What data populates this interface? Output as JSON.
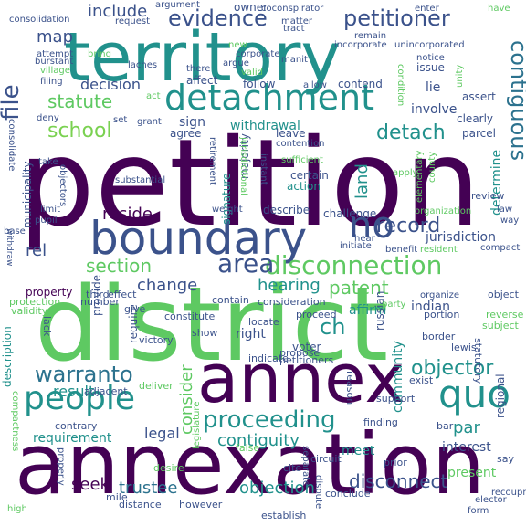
{
  "words": [
    {
      "text": "petition",
      "color": "#440154"
    },
    {
      "text": "district",
      "color": "#5ec962"
    },
    {
      "text": "annexation",
      "color": "#440154"
    },
    {
      "text": "territory",
      "color": "#21918c"
    },
    {
      "text": "annex",
      "color": "#440154"
    },
    {
      "text": "boundary",
      "color": "#3b528b"
    },
    {
      "text": "detachment",
      "color": "#21918c"
    },
    {
      "text": "people",
      "color": "#21918c"
    },
    {
      "text": "quo",
      "color": "#21918c"
    },
    {
      "text": "disconnection",
      "color": "#5ec962"
    },
    {
      "text": "proceeding",
      "color": "#21918c"
    },
    {
      "text": "warranto",
      "color": "#2c728e"
    },
    {
      "text": "area",
      "color": "#3b528b"
    },
    {
      "text": "no",
      "color": "#3b528b"
    },
    {
      "text": "evidence",
      "color": "#3b528b"
    },
    {
      "text": "petitioner",
      "color": "#3b528b"
    },
    {
      "text": "contiguous",
      "color": "#2c728e"
    },
    {
      "text": "file",
      "color": "#3b528b"
    },
    {
      "text": "map",
      "color": "#3b528b"
    },
    {
      "text": "include",
      "color": "#3b528b"
    },
    {
      "text": "statute",
      "color": "#5ec962"
    },
    {
      "text": "school",
      "color": "#7ad151"
    },
    {
      "text": "detach",
      "color": "#21918c"
    },
    {
      "text": "rel",
      "color": "#3b528b"
    },
    {
      "text": "record",
      "color": "#3b528b"
    },
    {
      "text": "section",
      "color": "#5ec962"
    },
    {
      "text": "patent",
      "color": "#5ec962"
    },
    {
      "text": "objector",
      "color": "#21918c"
    },
    {
      "text": "ch",
      "color": "#21918c"
    },
    {
      "text": "consider",
      "color": "#5ec962"
    },
    {
      "text": "contiguity",
      "color": "#21918c"
    },
    {
      "text": "change",
      "color": "#3b528b"
    },
    {
      "text": "hearing",
      "color": "#21918c"
    },
    {
      "text": "disconnect",
      "color": "#3b528b"
    },
    {
      "text": "objection",
      "color": "#21918c"
    },
    {
      "text": "trustee",
      "color": "#2c728e"
    },
    {
      "text": "seek",
      "color": "#440154"
    },
    {
      "text": "land",
      "color": "#21918c"
    },
    {
      "text": "reside",
      "color": "#440154"
    },
    {
      "text": "jurisdiction",
      "color": "#3b528b"
    },
    {
      "text": "requirement",
      "color": "#21918c"
    },
    {
      "text": "legal",
      "color": "#3b528b"
    },
    {
      "text": "result",
      "color": "#21918c"
    },
    {
      "text": "par",
      "color": "#21918c"
    },
    {
      "text": "interest",
      "color": "#3b528b"
    },
    {
      "text": "community",
      "color": "#21918c"
    },
    {
      "text": "affirm",
      "color": "#21918c"
    },
    {
      "text": "right",
      "color": "#3b528b"
    },
    {
      "text": "voter",
      "color": "#3b528b"
    },
    {
      "text": "present",
      "color": "#5ec962"
    },
    {
      "text": "decision",
      "color": "#3b528b"
    },
    {
      "text": "involve",
      "color": "#3b528b"
    },
    {
      "text": "withdrawal",
      "color": "#21918c"
    },
    {
      "text": "municipality",
      "color": "#3b528b"
    },
    {
      "text": "sign",
      "color": "#3b528b"
    },
    {
      "text": "lie",
      "color": "#3b528b"
    },
    {
      "text": "owner",
      "color": "#3b528b"
    },
    {
      "text": "meet",
      "color": "#21918c"
    },
    {
      "text": "determine",
      "color": "#21918c"
    },
    {
      "text": "provide",
      "color": "#3b528b"
    },
    {
      "text": "indian",
      "color": "#3b528b"
    },
    {
      "text": "property",
      "color": "#440154"
    },
    {
      "text": "action",
      "color": "#21918c"
    },
    {
      "text": "certain",
      "color": "#3b528b"
    },
    {
      "text": "signature",
      "color": "#21918c"
    },
    {
      "text": "describe",
      "color": "#3b528b"
    },
    {
      "text": "require",
      "color": "#3b528b"
    },
    {
      "text": "description",
      "color": "#21918c"
    },
    {
      "text": "majority",
      "color": "#3b528b"
    },
    {
      "text": "challenge",
      "color": "#3b528b"
    },
    {
      "text": "leave",
      "color": "#3b528b"
    },
    {
      "text": "contend",
      "color": "#3b528b"
    },
    {
      "text": "follow",
      "color": "#3b528b"
    },
    {
      "text": "affect",
      "color": "#3b528b"
    },
    {
      "text": "agree",
      "color": "#3b528b"
    },
    {
      "text": "issue",
      "color": "#3b528b"
    },
    {
      "text": "assert",
      "color": "#3b528b"
    },
    {
      "text": "clearly",
      "color": "#3b528b"
    },
    {
      "text": "parcel",
      "color": "#3b528b"
    },
    {
      "text": "review",
      "color": "#3b528b"
    },
    {
      "text": "compact",
      "color": "#3b528b"
    },
    {
      "text": "object",
      "color": "#3b528b"
    },
    {
      "text": "reverse",
      "color": "#5ec962"
    },
    {
      "text": "subject",
      "color": "#5ec962"
    },
    {
      "text": "portion",
      "color": "#3b528b"
    },
    {
      "text": "border",
      "color": "#3b528b"
    },
    {
      "text": "statutory",
      "color": "#3b528b"
    },
    {
      "text": "regional",
      "color": "#3b528b"
    },
    {
      "text": "recoupment",
      "color": "#3b528b"
    },
    {
      "text": "elector",
      "color": "#3b528b"
    },
    {
      "text": "form",
      "color": "#3b528b"
    },
    {
      "text": "russian",
      "color": "#3b528b"
    },
    {
      "text": "reason",
      "color": "#3b528b"
    },
    {
      "text": "victory",
      "color": "#3b528b"
    },
    {
      "text": "petitioners",
      "color": "#3b528b"
    },
    {
      "text": "propose",
      "color": "#3b528b"
    },
    {
      "text": "indicate",
      "color": "#3b528b"
    },
    {
      "text": "constitute",
      "color": "#3b528b"
    },
    {
      "text": "locate",
      "color": "#3b528b"
    },
    {
      "text": "proceed",
      "color": "#3b528b"
    },
    {
      "text": "show",
      "color": "#3b528b"
    },
    {
      "text": "third",
      "color": "#3b528b"
    },
    {
      "text": "number",
      "color": "#3b528b"
    },
    {
      "text": "effect",
      "color": "#3b528b"
    },
    {
      "text": "contain",
      "color": "#3b528b"
    },
    {
      "text": "consideration",
      "color": "#3b528b"
    },
    {
      "text": "lack",
      "color": "#3b528b"
    },
    {
      "text": "give",
      "color": "#3b528b"
    },
    {
      "text": "protection",
      "color": "#5ec962"
    },
    {
      "text": "validity",
      "color": "#5ec962"
    },
    {
      "text": "contrary",
      "color": "#3b528b"
    },
    {
      "text": "adjacent",
      "color": "#3b528b"
    },
    {
      "text": "deliver",
      "color": "#5ec962"
    },
    {
      "text": "legislature",
      "color": "#5ec962"
    },
    {
      "text": "desire",
      "color": "#5ec962"
    },
    {
      "text": "false",
      "color": "#5ec962"
    },
    {
      "text": "however",
      "color": "#3b528b"
    },
    {
      "text": "cite",
      "color": "#3b528b"
    },
    {
      "text": "mile",
      "color": "#3b528b"
    },
    {
      "text": "distance",
      "color": "#3b528b"
    },
    {
      "text": "establish",
      "color": "#3b528b"
    },
    {
      "text": "high",
      "color": "#5ec962"
    },
    {
      "text": "properly",
      "color": "#3b528b"
    },
    {
      "text": "compactness",
      "color": "#5ec962"
    },
    {
      "text": "circuit",
      "color": "#3b528b"
    },
    {
      "text": "separate",
      "color": "#3b528b"
    },
    {
      "text": "dispute",
      "color": "#3b528b"
    },
    {
      "text": "conclude",
      "color": "#3b528b"
    },
    {
      "text": "prior",
      "color": "#3b528b"
    },
    {
      "text": "finding",
      "color": "#3b528b"
    },
    {
      "text": "support",
      "color": "#3b528b"
    },
    {
      "text": "exist",
      "color": "#3b528b"
    },
    {
      "text": "lewis",
      "color": "#3b528b"
    },
    {
      "text": "say",
      "color": "#3b528b"
    },
    {
      "text": "bar",
      "color": "#3b528b"
    },
    {
      "text": "coconspirator",
      "color": "#3b528b"
    },
    {
      "text": "argument",
      "color": "#3b528b"
    },
    {
      "text": "consolidation",
      "color": "#3b528b"
    },
    {
      "text": "request",
      "color": "#3b528b"
    },
    {
      "text": "enter",
      "color": "#3b528b"
    },
    {
      "text": "matter",
      "color": "#3b528b"
    },
    {
      "text": "tract",
      "color": "#3b528b"
    },
    {
      "text": "remain",
      "color": "#3b528b"
    },
    {
      "text": "incorporate",
      "color": "#3b528b"
    },
    {
      "text": "unincorporated",
      "color": "#3b528b"
    },
    {
      "text": "have",
      "color": "#5ec962"
    },
    {
      "text": "attempt",
      "color": "#3b528b"
    },
    {
      "text": "burstant",
      "color": "#3b528b"
    },
    {
      "text": "village",
      "color": "#5ec962"
    },
    {
      "text": "filing",
      "color": "#3b528b"
    },
    {
      "text": "bring",
      "color": "#5ec962"
    },
    {
      "text": "laches",
      "color": "#3b528b"
    },
    {
      "text": "new",
      "color": "#5ec962"
    },
    {
      "text": "corporate",
      "color": "#3b528b"
    },
    {
      "text": "argue",
      "color": "#3b528b"
    },
    {
      "text": "valid",
      "color": "#5ec962"
    },
    {
      "text": "there",
      "color": "#3b528b"
    },
    {
      "text": "manit",
      "color": "#3b528b"
    },
    {
      "text": "notice",
      "color": "#3b528b"
    },
    {
      "text": "condition",
      "color": "#5ec962"
    },
    {
      "text": "allow",
      "color": "#3b528b"
    },
    {
      "text": "act",
      "color": "#5ec962"
    },
    {
      "text": "deny",
      "color": "#3b528b"
    },
    {
      "text": "set",
      "color": "#3b528b"
    },
    {
      "text": "grant",
      "color": "#3b528b"
    },
    {
      "text": "consolidate",
      "color": "#3b528b"
    },
    {
      "text": "contention",
      "color": "#3b528b"
    },
    {
      "text": "sufficient",
      "color": "#5ec962"
    },
    {
      "text": "retirement",
      "color": "#3b528b"
    },
    {
      "text": "jurisdictional",
      "color": "#5ec962"
    },
    {
      "text": "instant",
      "color": "#3b528b"
    },
    {
      "text": "take",
      "color": "#3b528b"
    },
    {
      "text": "substantial",
      "color": "#3b528b"
    },
    {
      "text": "objectors",
      "color": "#3b528b"
    },
    {
      "text": "limit",
      "color": "#3b528b"
    },
    {
      "text": "pupil",
      "color": "#3b528b"
    },
    {
      "text": "base",
      "color": "#3b528b"
    },
    {
      "text": "withdraw",
      "color": "#3b528b"
    },
    {
      "text": "weight",
      "color": "#3b528b"
    },
    {
      "text": "apply",
      "color": "#5ec962"
    },
    {
      "text": "county",
      "color": "#5ec962"
    },
    {
      "text": "elementary",
      "color": "#5ec962"
    },
    {
      "text": "organization",
      "color": "#5ec962"
    },
    {
      "text": "law",
      "color": "#3b528b"
    },
    {
      "text": "way",
      "color": "#3b528b"
    },
    {
      "text": "hear",
      "color": "#3b528b"
    },
    {
      "text": "initiate",
      "color": "#3b528b"
    },
    {
      "text": "benefit",
      "color": "#3b528b"
    },
    {
      "text": "resident",
      "color": "#5ec962"
    },
    {
      "text": "party",
      "color": "#5ec962"
    },
    {
      "text": "organize",
      "color": "#3b528b"
    },
    {
      "text": "unity",
      "color": "#5ec962"
    }
  ]
}
